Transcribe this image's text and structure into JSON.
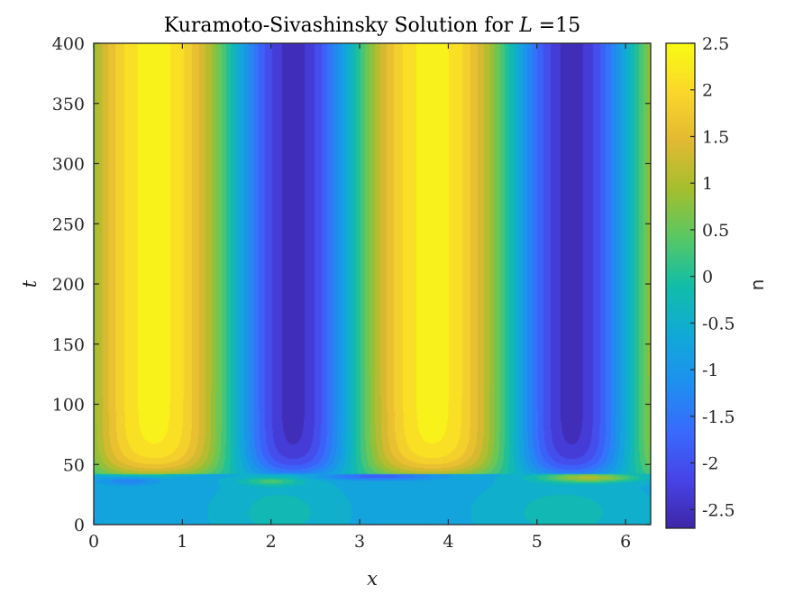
{
  "chart_data": {
    "type": "heatmap",
    "title_prefix": "Kuramoto-Sivashinsky Solution for ",
    "title_var": "L",
    "title_suffix": " =15",
    "xlabel": "x",
    "ylabel": "t",
    "colorbar_label": "u",
    "xlim": [
      0,
      6.2832
    ],
    "ylim": [
      0,
      400
    ],
    "xticks": [
      "0",
      "1",
      "2",
      "3",
      "4",
      "5",
      "6"
    ],
    "yticks": [
      "0",
      "50",
      "100",
      "150",
      "200",
      "250",
      "300",
      "350",
      "400"
    ],
    "clim": [
      -2.7,
      2.5
    ],
    "colorbar_ticks": [
      "-2.5",
      "-2",
      "-1.5",
      "-1",
      "-0.5",
      "0",
      "0.5",
      "1",
      "1.5",
      "2",
      "2.5"
    ],
    "colormap": "parula",
    "levels": 20,
    "steady_state": {
      "description": "two-cell stationary profile for t > ~45",
      "max_u": 2.5,
      "min_u": -2.6,
      "peak_x": [
        0.68,
        3.82
      ],
      "trough_x": [
        2.0,
        5.1
      ]
    },
    "transition_t": 42
  }
}
